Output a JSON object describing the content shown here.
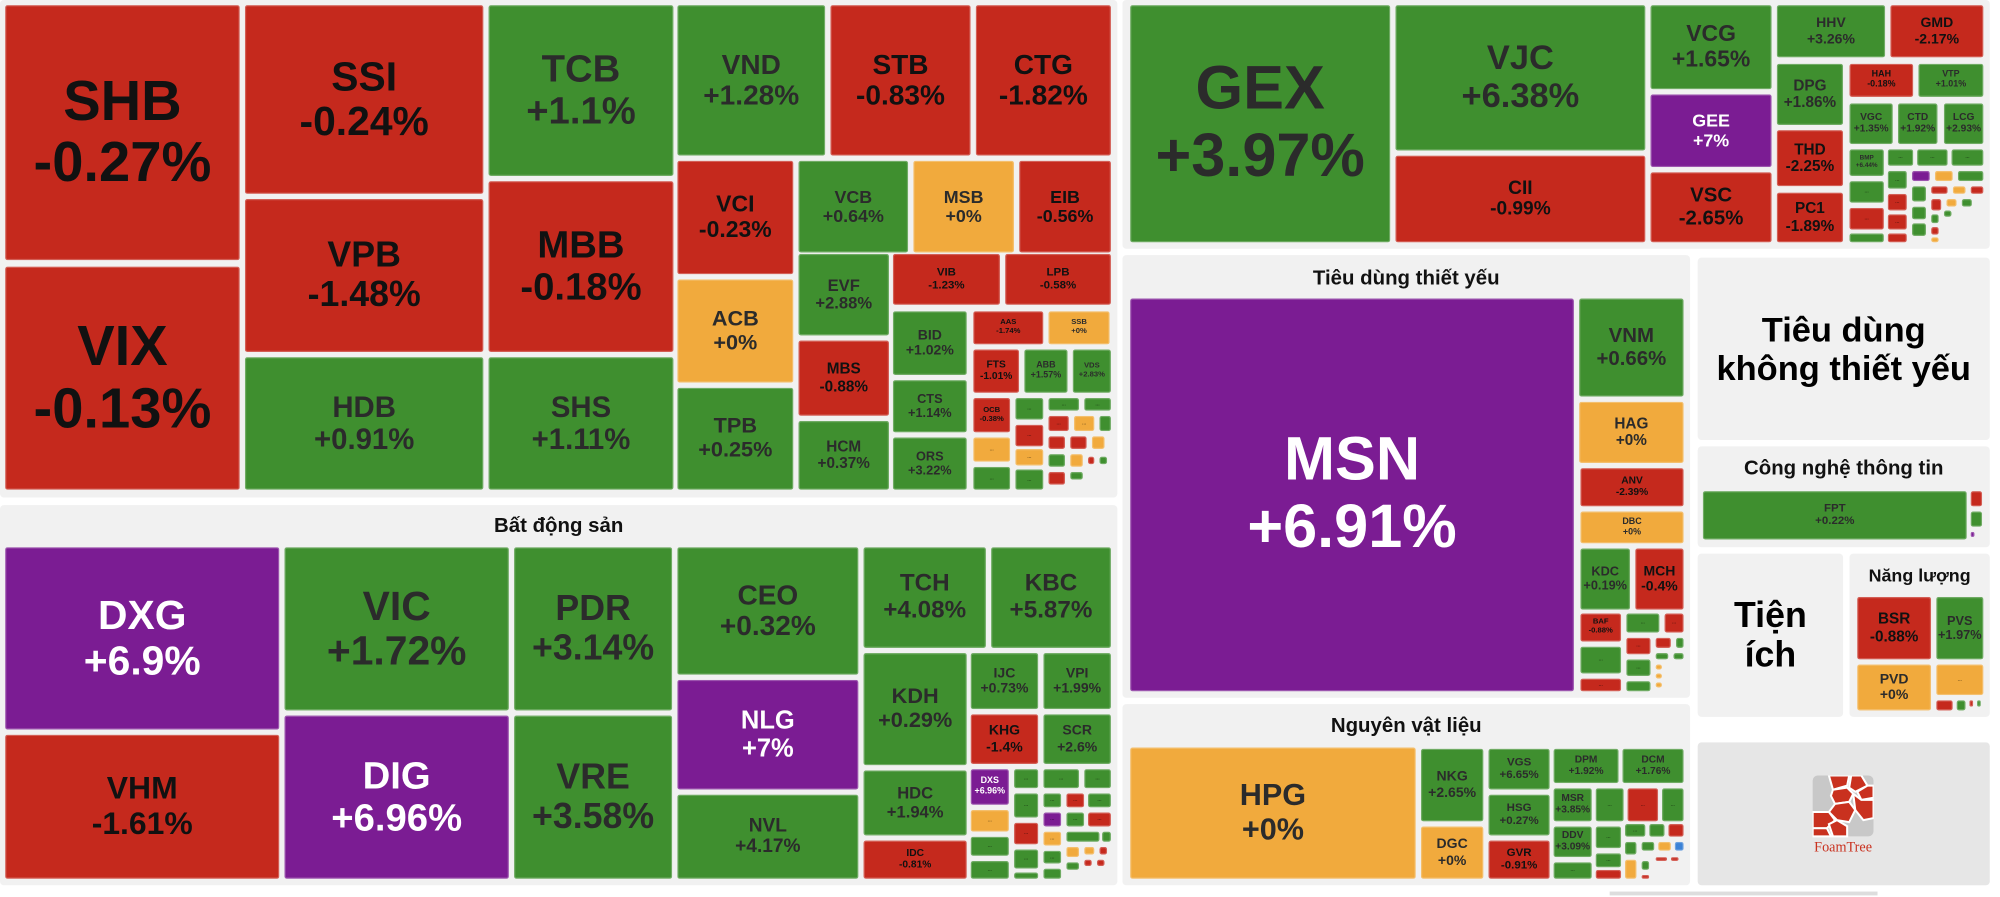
{
  "more_label": "...",
  "colors": {
    "up": "#3f8f2f",
    "down": "#c5291d",
    "flat": "#f1aa3d",
    "ceil": "#7b1c93",
    "blue": "#3b82d6",
    "panel": "#f1f1f1"
  },
  "groups": [
    {
      "id": "finance",
      "title": "",
      "tiles": [
        {
          "ticker": "SHB",
          "change": "-0.27%",
          "status": "down"
        },
        {
          "ticker": "VIX",
          "change": "-0.13%",
          "status": "down"
        },
        {
          "ticker": "SSI",
          "change": "-0.24%",
          "status": "down"
        },
        {
          "ticker": "VPB",
          "change": "-1.48%",
          "status": "down"
        },
        {
          "ticker": "HDB",
          "change": "+0.91%",
          "status": "up"
        },
        {
          "ticker": "TCB",
          "change": "+1.1%",
          "status": "up"
        },
        {
          "ticker": "MBB",
          "change": "-0.18%",
          "status": "down"
        },
        {
          "ticker": "SHS",
          "change": "+1.11%",
          "status": "up"
        },
        {
          "ticker": "VND",
          "change": "+1.28%",
          "status": "up"
        },
        {
          "ticker": "STB",
          "change": "-0.83%",
          "status": "down"
        },
        {
          "ticker": "CTG",
          "change": "-1.82%",
          "status": "down"
        },
        {
          "ticker": "VCI",
          "change": "-0.23%",
          "status": "down"
        },
        {
          "ticker": "ACB",
          "change": "+0%",
          "status": "flat"
        },
        {
          "ticker": "TPB",
          "change": "+0.25%",
          "status": "up"
        },
        {
          "ticker": "VCB",
          "change": "+0.64%",
          "status": "up"
        },
        {
          "ticker": "MSB",
          "change": "+0%",
          "status": "flat"
        },
        {
          "ticker": "EIB",
          "change": "-0.56%",
          "status": "down"
        },
        {
          "ticker": "EVF",
          "change": "+2.88%",
          "status": "up"
        },
        {
          "ticker": "MBS",
          "change": "-0.88%",
          "status": "down"
        },
        {
          "ticker": "HCM",
          "change": "+0.37%",
          "status": "up"
        },
        {
          "ticker": "VIB",
          "change": "-1.23%",
          "status": "down"
        },
        {
          "ticker": "LPB",
          "change": "-0.58%",
          "status": "down"
        },
        {
          "ticker": "BID",
          "change": "+1.02%",
          "status": "up"
        },
        {
          "ticker": "CTS",
          "change": "+1.14%",
          "status": "up"
        },
        {
          "ticker": "ORS",
          "change": "+3.22%",
          "status": "up"
        },
        {
          "ticker": "AAS",
          "change": "-1.74%",
          "status": "down"
        },
        {
          "ticker": "SSB",
          "change": "+0%",
          "status": "flat"
        },
        {
          "ticker": "FTS",
          "change": "-1.01%",
          "status": "down"
        },
        {
          "ticker": "ABB",
          "change": "+1.57%",
          "status": "up"
        },
        {
          "ticker": "VDS",
          "change": "+2.83%",
          "status": "up"
        },
        {
          "ticker": "OCB",
          "change": "-0.38%",
          "status": "down"
        }
      ]
    },
    {
      "id": "real-estate",
      "title": "Bất động sản",
      "tiles": [
        {
          "ticker": "DXG",
          "change": "+6.9%",
          "status": "ceil"
        },
        {
          "ticker": "VHM",
          "change": "-1.61%",
          "status": "down"
        },
        {
          "ticker": "VIC",
          "change": "+1.72%",
          "status": "up"
        },
        {
          "ticker": "DIG",
          "change": "+6.96%",
          "status": "ceil"
        },
        {
          "ticker": "PDR",
          "change": "+3.14%",
          "status": "up"
        },
        {
          "ticker": "VRE",
          "change": "+3.58%",
          "status": "up"
        },
        {
          "ticker": "CEO",
          "change": "+0.32%",
          "status": "up"
        },
        {
          "ticker": "NLG",
          "change": "+7%",
          "status": "ceil"
        },
        {
          "ticker": "NVL",
          "change": "+4.17%",
          "status": "up"
        },
        {
          "ticker": "TCH",
          "change": "+4.08%",
          "status": "up"
        },
        {
          "ticker": "KBC",
          "change": "+5.87%",
          "status": "up"
        },
        {
          "ticker": "KDH",
          "change": "+0.29%",
          "status": "up"
        },
        {
          "ticker": "HDC",
          "change": "+1.94%",
          "status": "up"
        },
        {
          "ticker": "IDC",
          "change": "-0.81%",
          "status": "down"
        },
        {
          "ticker": "IJC",
          "change": "+0.73%",
          "status": "up"
        },
        {
          "ticker": "VPI",
          "change": "+1.99%",
          "status": "up"
        },
        {
          "ticker": "KHG",
          "change": "-1.4%",
          "status": "down"
        },
        {
          "ticker": "SCR",
          "change": "+2.6%",
          "status": "up"
        },
        {
          "ticker": "DXS",
          "change": "+6.96%",
          "status": "ceil"
        }
      ]
    },
    {
      "id": "industrials",
      "title": "",
      "tiles": [
        {
          "ticker": "GEX",
          "change": "+3.97%",
          "status": "up"
        },
        {
          "ticker": "VJC",
          "change": "+6.38%",
          "status": "up"
        },
        {
          "ticker": "CII",
          "change": "-0.99%",
          "status": "down"
        },
        {
          "ticker": "VCG",
          "change": "+1.65%",
          "status": "up"
        },
        {
          "ticker": "GEE",
          "change": "+7%",
          "status": "ceil"
        },
        {
          "ticker": "VSC",
          "change": "-2.65%",
          "status": "down"
        },
        {
          "ticker": "HHV",
          "change": "+3.26%",
          "status": "up"
        },
        {
          "ticker": "GMD",
          "change": "-2.17%",
          "status": "down"
        },
        {
          "ticker": "DPG",
          "change": "+1.86%",
          "status": "up"
        },
        {
          "ticker": "THD",
          "change": "-2.25%",
          "status": "down"
        },
        {
          "ticker": "PC1",
          "change": "-1.89%",
          "status": "down"
        },
        {
          "ticker": "HAH",
          "change": "-0.18%",
          "status": "down"
        },
        {
          "ticker": "VTP",
          "change": "+1.01%",
          "status": "up"
        },
        {
          "ticker": "VGC",
          "change": "+1.35%",
          "status": "up"
        },
        {
          "ticker": "CTD",
          "change": "+1.92%",
          "status": "up"
        },
        {
          "ticker": "LCG",
          "change": "+2.93%",
          "status": "up"
        },
        {
          "ticker": "BMP",
          "change": "+6.44%",
          "status": "up"
        }
      ]
    },
    {
      "id": "consumer-staples",
      "title": "Tiêu dùng thiết yếu",
      "tiles": [
        {
          "ticker": "MSN",
          "change": "+6.91%",
          "status": "ceil"
        },
        {
          "ticker": "VNM",
          "change": "+0.66%",
          "status": "up"
        },
        {
          "ticker": "HAG",
          "change": "+0%",
          "status": "flat"
        },
        {
          "ticker": "ANV",
          "change": "-2.39%",
          "status": "down"
        },
        {
          "ticker": "DBC",
          "change": "+0%",
          "status": "flat"
        },
        {
          "ticker": "KDC",
          "change": "+0.19%",
          "status": "up"
        },
        {
          "ticker": "MCH",
          "change": "-0.4%",
          "status": "down"
        },
        {
          "ticker": "BAF",
          "change": "-0.88%",
          "status": "down"
        }
      ]
    },
    {
      "id": "materials",
      "title": "Nguyên vật liệu",
      "tiles": [
        {
          "ticker": "HPG",
          "change": "+0%",
          "status": "flat"
        },
        {
          "ticker": "NKG",
          "change": "+2.65%",
          "status": "up"
        },
        {
          "ticker": "DGC",
          "change": "+0%",
          "status": "flat"
        },
        {
          "ticker": "VGS",
          "change": "+6.65%",
          "status": "up"
        },
        {
          "ticker": "HSG",
          "change": "+0.27%",
          "status": "up"
        },
        {
          "ticker": "GVR",
          "change": "-0.91%",
          "status": "down"
        },
        {
          "ticker": "DPM",
          "change": "+1.92%",
          "status": "up"
        },
        {
          "ticker": "DCM",
          "change": "+1.76%",
          "status": "up"
        },
        {
          "ticker": "MSR",
          "change": "+3.85%",
          "status": "up"
        },
        {
          "ticker": "DDV",
          "change": "+3.09%",
          "status": "up"
        }
      ]
    },
    {
      "id": "consumer-discretionary",
      "title": "Tiêu dùng không thiết yếu",
      "tiles": []
    },
    {
      "id": "information-technology",
      "title": "Công nghệ thông tin",
      "tiles": [
        {
          "ticker": "FPT",
          "change": "+0.22%",
          "status": "up"
        }
      ]
    },
    {
      "id": "utilities",
      "title": "Tiện ích",
      "tiles": []
    },
    {
      "id": "energy",
      "title": "Năng lượng",
      "tiles": [
        {
          "ticker": "BSR",
          "change": "-0.88%",
          "status": "down"
        },
        {
          "ticker": "PVS",
          "change": "+1.97%",
          "status": "up"
        },
        {
          "ticker": "PVD",
          "change": "+0%",
          "status": "flat"
        }
      ]
    }
  ],
  "logo": {
    "text": "FoamTree"
  }
}
